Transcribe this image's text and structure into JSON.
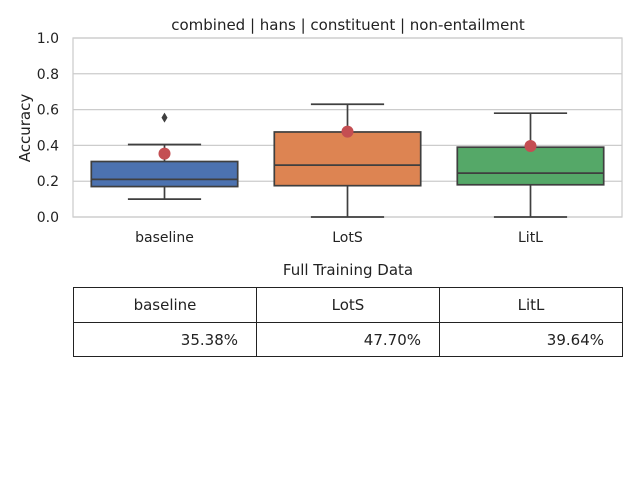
{
  "chart_data": {
    "type": "box",
    "title": "combined | hans | constituent | non-entailment",
    "xlabel": "Full Training Data",
    "ylabel": "Accuracy",
    "ylim": [
      0,
      1.0
    ],
    "yticks": [
      "0.0",
      "0.2",
      "0.4",
      "0.6",
      "0.8",
      "1.0"
    ],
    "grid": true,
    "boxes": [
      {
        "name": "baseline",
        "color": "#4c72b0",
        "whisker_low": 0.1,
        "q1": 0.17,
        "median": 0.21,
        "q3": 0.31,
        "whisker_high": 0.405,
        "outliers": [
          0.555
        ],
        "mean": 0.3538
      },
      {
        "name": "LotS",
        "color": "#dd8452",
        "whisker_low": 0.0,
        "q1": 0.175,
        "median": 0.29,
        "q3": 0.475,
        "whisker_high": 0.63,
        "outliers": [],
        "mean": 0.477
      },
      {
        "name": "LitL",
        "color": "#55a868",
        "whisker_low": 0.0,
        "q1": 0.18,
        "median": 0.245,
        "q3": 0.39,
        "whisker_high": 0.58,
        "outliers": [],
        "mean": 0.3964
      }
    ],
    "mean_marker_color": "#c44e52"
  },
  "summary_table": {
    "headers": [
      "baseline",
      "LotS",
      "LitL"
    ],
    "values": [
      "35.38%",
      "47.70%",
      "39.64%"
    ]
  }
}
